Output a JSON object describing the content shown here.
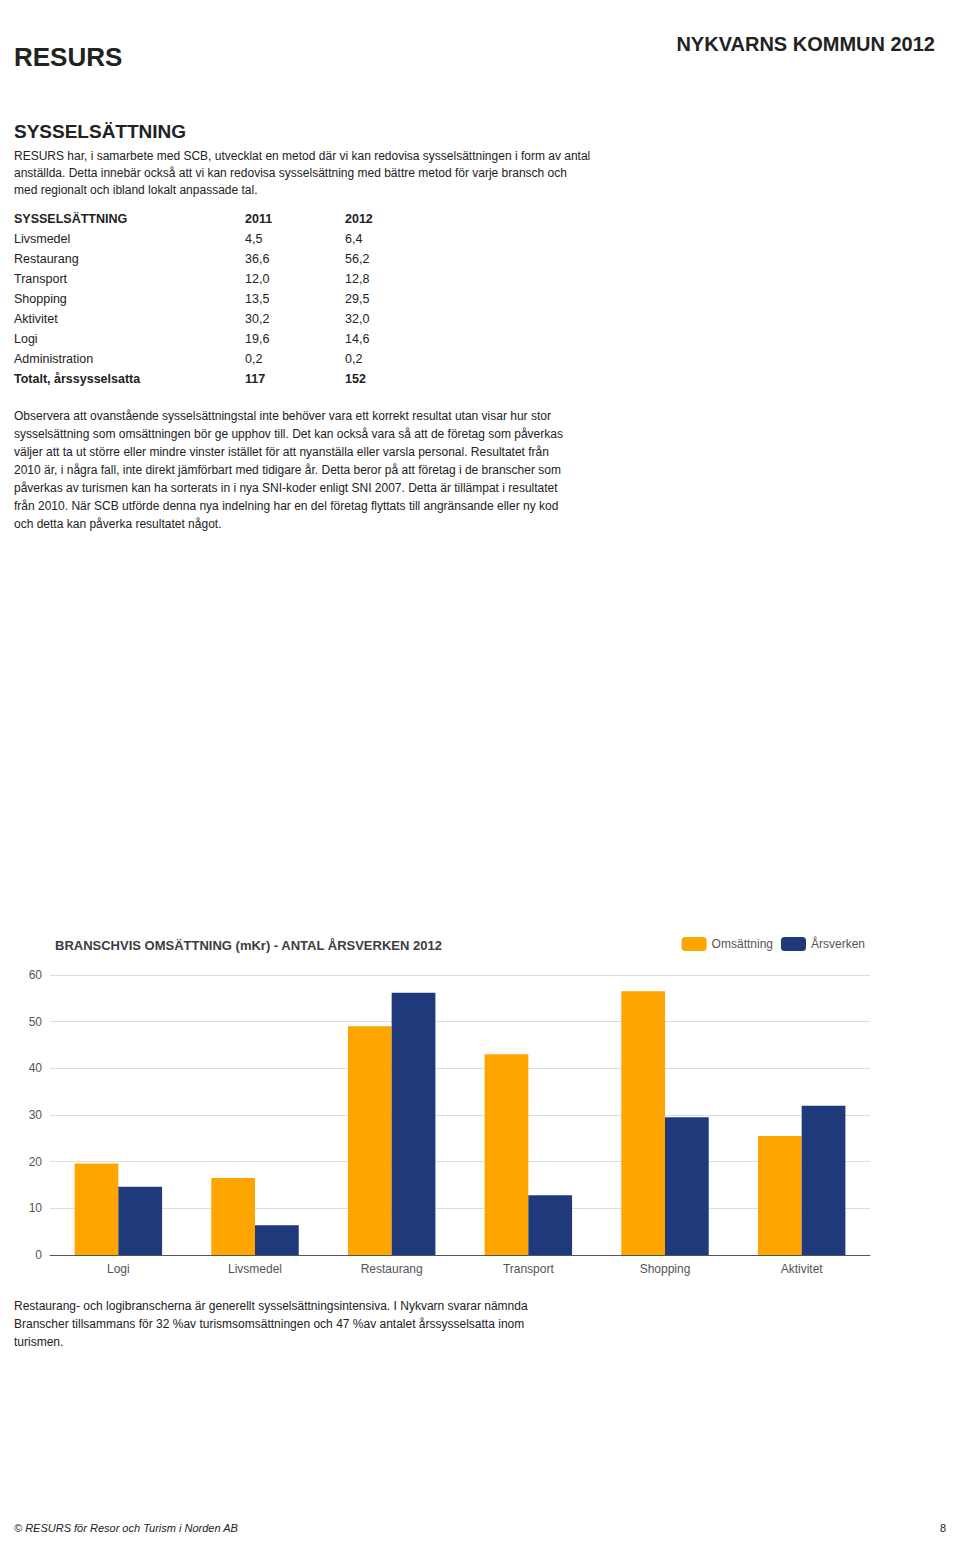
{
  "chart_data": {
    "type": "bar",
    "title": "BRANSCHVIS OMSÄTTNING (mKr) - ANTAL ÅRSVERKEN 2012",
    "categories": [
      "Logi",
      "Livsmedel",
      "Restaurang",
      "Transport",
      "Shopping",
      "Aktivitet"
    ],
    "series": [
      {
        "name": "Omsättning",
        "color": "#FFA500",
        "values": [
          19.6,
          16.5,
          49.0,
          43.0,
          56.5,
          25.5
        ]
      },
      {
        "name": "Årsverken",
        "color": "#1F3A7A",
        "values": [
          14.6,
          6.4,
          56.2,
          12.8,
          29.5,
          32.0
        ]
      }
    ],
    "ylim": [
      0,
      60
    ],
    "yticks": [
      0,
      10,
      20,
      30,
      40,
      50,
      60
    ],
    "grid": true,
    "legend": "right",
    "annotations": [
      "RESURS",
      "NYKVARNS KOMMUN 2012",
      "SYSSELSÄTTNING",
      "RESURS har, i samarbete med SCB, utvecklat en metod där vi kan redovisa sysselsättningen i form av antal",
      "anställda. Detta innebär också att vi kan redovisa sysselsättning med bättre metod för varje bransch och",
      "med regionalt och ibland lokalt anpassade tal.",
      [
        "SYSSELSÄTTNING",
        "2011",
        "2012"
      ],
      [
        "Livsmedel",
        "4,5",
        "6,4"
      ],
      [
        "Restaurang",
        "36,6",
        "56,2"
      ],
      [
        "Transport",
        "12,0",
        "12,8"
      ],
      [
        "Shopping",
        "13,5",
        "29,5"
      ],
      [
        "Aktivitet",
        "30,2",
        "32,0"
      ],
      [
        "Logi",
        "19,6",
        "14,6"
      ],
      [
        "Administration",
        "0,2",
        "0,2"
      ],
      [
        "Totalt, årssysselsatta",
        "117",
        "152"
      ],
      "Observera att ovanstående sysselsättningstal inte behöver vara ett korrekt resultat utan visar hur stor",
      "sysselsättning som omsättningen bör ge upphov till. Det kan också vara så att de företag som påverkas",
      "väljer att ta ut större eller mindre vinster istället för att nyanställa eller varsla personal. Resultatet från",
      "2010 är, i några fall, inte direkt jämförbart med tidigare år. Detta beror på att företag i de branscher som",
      "påverkas av turismen kan ha sorterats in i nya SNI-koder enligt SNI 2007. Detta är tillämpat i resultatet",
      "från 2010. När SCB utförde denna nya indelning har en del företag flyttats till angränsande eller ny kod",
      "och detta kan påverka resultatet något.",
      "Restaurang- och logibranscherna är generellt sysselsättningsintensiva. I Nykvarn svarar nämnda",
      "Branscher tillsammans för 32 %av turismsomsättningen och 47 %av antalet årssysselsatta inom",
      "turismen.",
      "© RESURS för Resor och Turism i Norden AB",
      "8"
    ]
  }
}
